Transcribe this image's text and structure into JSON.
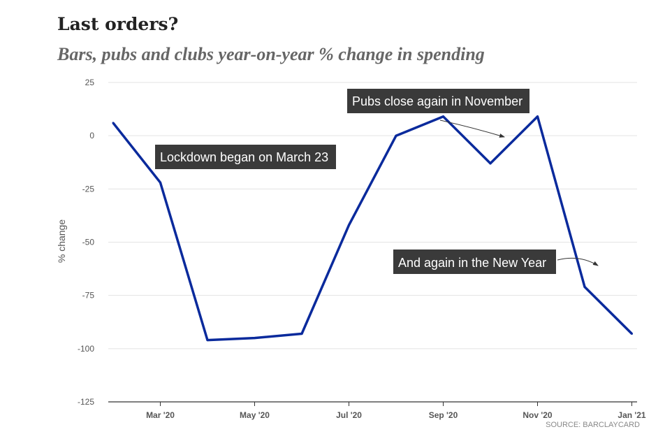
{
  "title": "Last orders?",
  "subtitle": "Bars, pubs and clubs year-on-year % change in spending",
  "source": "SOURCE: BARCLAYCARD",
  "colors": {
    "line": "#0a2a9c",
    "annotation_bg": "#3a3a3a",
    "grid": "#e3e3e3"
  },
  "chart_data": {
    "type": "line",
    "title": "Last orders?",
    "subtitle": "Bars, pubs and clubs year-on-year % change in spending",
    "xlabel": "",
    "ylabel": "% change",
    "ylim": [
      -125,
      25
    ],
    "yticks": [
      25,
      0,
      -25,
      -50,
      -75,
      -100,
      -125
    ],
    "ytick_labels": [
      "25",
      "0",
      "-25",
      "-50",
      "-75",
      "-100",
      "-125"
    ],
    "xtick_labels": [
      "Mar '20",
      "May '20",
      "Jul '20",
      "Sep '20",
      "Nov '20",
      "Jan '21"
    ],
    "grid": true,
    "series": [
      {
        "x": [
          "2020-02",
          "2020-03",
          "2020-04",
          "2020-05",
          "2020-06",
          "2020-07",
          "2020-08",
          "2020-09",
          "2020-10",
          "2020-11",
          "2020-12",
          "2021-01"
        ],
        "values": [
          6,
          -22,
          -96,
          -95,
          -93,
          -42,
          0,
          9,
          -13,
          9,
          -71,
          -93
        ]
      }
    ],
    "annotations": [
      {
        "text": "Lockdown began on March 23"
      },
      {
        "text": "Pubs close again in November"
      },
      {
        "text": "And again in the New Year"
      }
    ]
  }
}
